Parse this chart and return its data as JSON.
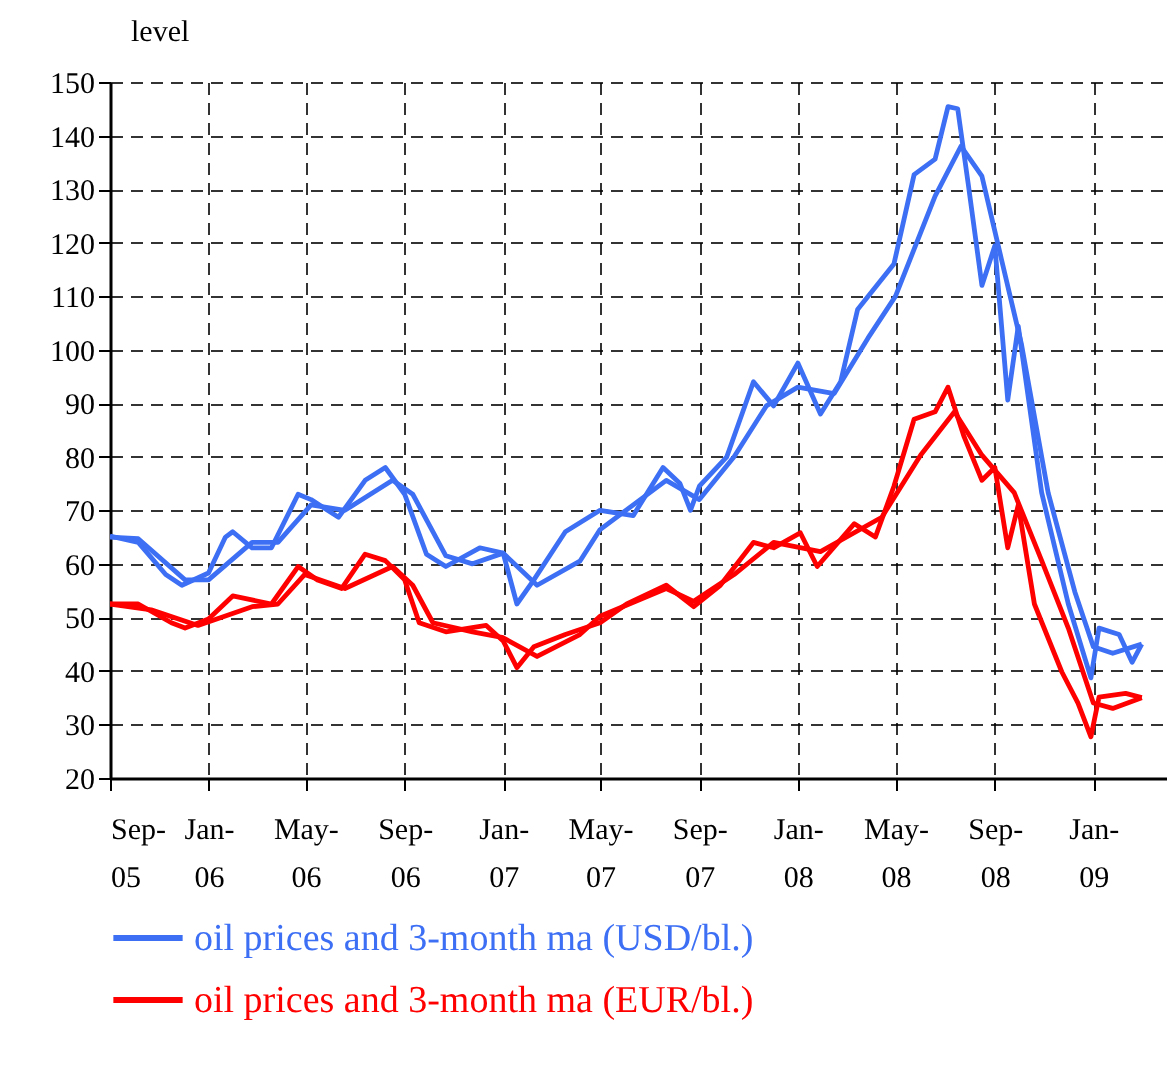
{
  "chart_data": {
    "type": "line",
    "ylabel": "level",
    "legend": "bottom",
    "grid": true,
    "line_style": "solid",
    "xlim": [
      "2005-09-01",
      "2009-04-01"
    ],
    "ylim": [
      20,
      150
    ],
    "yticks": [
      20,
      30,
      40,
      50,
      60,
      70,
      80,
      90,
      100,
      110,
      120,
      130,
      140,
      150
    ],
    "xticks": [
      {
        "value": "2005-09-01",
        "label": "Sep-05"
      },
      {
        "value": "2006-01-01",
        "label": "Jan-06"
      },
      {
        "value": "2006-05-01",
        "label": "May-06"
      },
      {
        "value": "2006-09-01",
        "label": "Sep-06"
      },
      {
        "value": "2007-01-01",
        "label": "Jan-07"
      },
      {
        "value": "2007-05-01",
        "label": "May-07"
      },
      {
        "value": "2007-09-01",
        "label": "Sep-07"
      },
      {
        "value": "2008-01-01",
        "label": "Jan-08"
      },
      {
        "value": "2008-05-01",
        "label": "May-08"
      },
      {
        "value": "2008-09-01",
        "label": "Sep-08"
      },
      {
        "value": "2009-01-01",
        "label": "Jan-09"
      }
    ],
    "series": [
      {
        "name": "oil prices and 3-month ma (USD/bl.)",
        "color": "#3d6ff5",
        "x": [
          "2005-09-01",
          "2005-10-06",
          "2005-11-09",
          "2005-11-29",
          "2006-01-01",
          "2006-01-22",
          "2006-01-31",
          "2006-02-24",
          "2006-03-20",
          "2006-04-22",
          "2006-05-08",
          "2006-06-11",
          "2006-07-14",
          "2006-08-08",
          "2006-09-01",
          "2006-09-28",
          "2006-10-22",
          "2006-12-03",
          "2007-01-01",
          "2007-01-18",
          "2007-02-08",
          "2007-03-19",
          "2007-05-01",
          "2007-06-11",
          "2007-07-18",
          "2007-08-08",
          "2007-08-21",
          "2007-09-01",
          "2007-10-05",
          "2007-11-07",
          "2007-12-02",
          "2008-01-01",
          "2008-01-29",
          "2008-02-23",
          "2008-03-15",
          "2008-04-29",
          "2008-05-24",
          "2008-06-19",
          "2008-07-05",
          "2008-07-17",
          "2008-07-30",
          "2008-08-16",
          "2008-09-01",
          "2008-09-17",
          "2008-09-30",
          "2008-10-29",
          "2008-12-01",
          "2008-12-29",
          "2009-01-08",
          "2009-02-02",
          "2009-02-18",
          "2009-03-02"
        ],
        "values": [
          65.2,
          64,
          58,
          56,
          58.3,
          65,
          66,
          63,
          63,
          73,
          72,
          68.7,
          75.6,
          78,
          73,
          61.8,
          59.5,
          63,
          62,
          52.5,
          57,
          66,
          70,
          69,
          78,
          75,
          70,
          74.5,
          80,
          94,
          89.5,
          97.5,
          88,
          94,
          107.5,
          116,
          132.7,
          135.6,
          145.4,
          145,
          131,
          112,
          119.4,
          90.6,
          104.4,
          73.3,
          52.5,
          38.7,
          48,
          46.8,
          41.6,
          45
        ]
      },
      {
        "color": "#3d6ff5",
        "x": [
          "2005-09-01",
          "2005-10-06",
          "2005-12-03",
          "2006-01-01",
          "2006-02-24",
          "2006-03-28",
          "2006-05-08",
          "2006-06-19",
          "2006-08-17",
          "2006-09-11",
          "2006-10-22",
          "2006-11-24",
          "2007-01-01",
          "2007-02-12",
          "2007-04-06",
          "2007-05-01",
          "2007-07-22",
          "2007-09-01",
          "2007-10-14",
          "2007-11-23",
          "2008-01-01",
          "2008-02-15",
          "2008-03-28",
          "2008-05-01",
          "2008-06-19",
          "2008-07-21",
          "2008-08-16",
          "2008-09-09",
          "2008-10-04",
          "2008-11-06",
          "2008-12-09",
          "2009-01-01",
          "2009-01-25",
          "2009-03-02"
        ],
        "values": [
          65,
          64.7,
          57,
          57,
          64,
          64,
          71,
          70,
          75.6,
          73,
          61.5,
          60,
          62,
          56,
          60.5,
          66.4,
          75.6,
          72,
          80,
          89.5,
          93,
          91.8,
          102.2,
          110,
          128.7,
          138,
          132.4,
          117,
          101,
          73.3,
          54.8,
          44.5,
          43.3,
          45
        ]
      },
      {
        "name": "oil prices and 3-month ma (EUR/bl.)",
        "color": "#ff0000",
        "x": [
          "2005-09-01",
          "2005-10-06",
          "2005-11-16",
          "2005-12-03",
          "2006-01-01",
          "2006-01-31",
          "2006-03-20",
          "2006-04-22",
          "2006-05-16",
          "2006-06-15",
          "2006-07-14",
          "2006-08-08",
          "2006-09-01",
          "2006-09-19",
          "2006-10-22",
          "2006-12-11",
          "2007-01-01",
          "2007-01-18",
          "2007-02-08",
          "2007-03-19",
          "2007-05-01",
          "2007-06-03",
          "2007-07-22",
          "2007-08-25",
          "2007-09-27",
          "2007-11-07",
          "2007-12-02",
          "2008-01-04",
          "2008-01-25",
          "2008-03-11",
          "2008-04-06",
          "2008-04-29",
          "2008-05-24",
          "2008-06-19",
          "2008-07-05",
          "2008-07-25",
          "2008-08-16",
          "2008-09-01",
          "2008-09-17",
          "2008-09-30",
          "2008-10-20",
          "2008-11-23",
          "2008-12-13",
          "2008-12-29",
          "2009-01-08",
          "2009-02-10",
          "2009-03-02"
        ],
        "values": [
          52.5,
          52.5,
          49,
          48,
          49.7,
          54,
          52.5,
          59.5,
          57,
          55.4,
          61.8,
          60.6,
          57,
          49,
          47.3,
          48.5,
          45.6,
          40.6,
          44.5,
          46.8,
          49,
          52.5,
          56,
          52,
          56,
          64,
          63,
          65.8,
          59.5,
          67.5,
          65,
          74.5,
          87,
          88.4,
          93,
          83.7,
          75.6,
          78,
          63,
          71,
          52.5,
          39.8,
          34,
          27.7,
          35.1,
          35.8,
          35
        ]
      },
      {
        "color": "#ff0000",
        "x": [
          "2005-09-01",
          "2005-10-22",
          "2005-12-19",
          "2006-02-24",
          "2006-03-28",
          "2006-04-30",
          "2006-06-19",
          "2006-08-17",
          "2006-09-11",
          "2006-10-06",
          "2006-11-24",
          "2007-01-01",
          "2007-02-12",
          "2007-04-06",
          "2007-05-01",
          "2007-07-22",
          "2007-08-25",
          "2007-10-14",
          "2007-12-02",
          "2008-01-29",
          "2008-04-14",
          "2008-06-01",
          "2008-07-13",
          "2008-08-16",
          "2008-09-25",
          "2008-10-29",
          "2008-12-01",
          "2009-01-01",
          "2009-01-25",
          "2009-03-02"
        ],
        "values": [
          52.5,
          51.4,
          48.5,
          52,
          52.5,
          58,
          55.4,
          59.5,
          56,
          49,
          47.3,
          46.2,
          42.7,
          46.8,
          50.2,
          55.4,
          53,
          58,
          64,
          62.3,
          68.7,
          80.3,
          88.4,
          80.3,
          73.3,
          60.6,
          48,
          34,
          33,
          35
        ]
      }
    ]
  }
}
